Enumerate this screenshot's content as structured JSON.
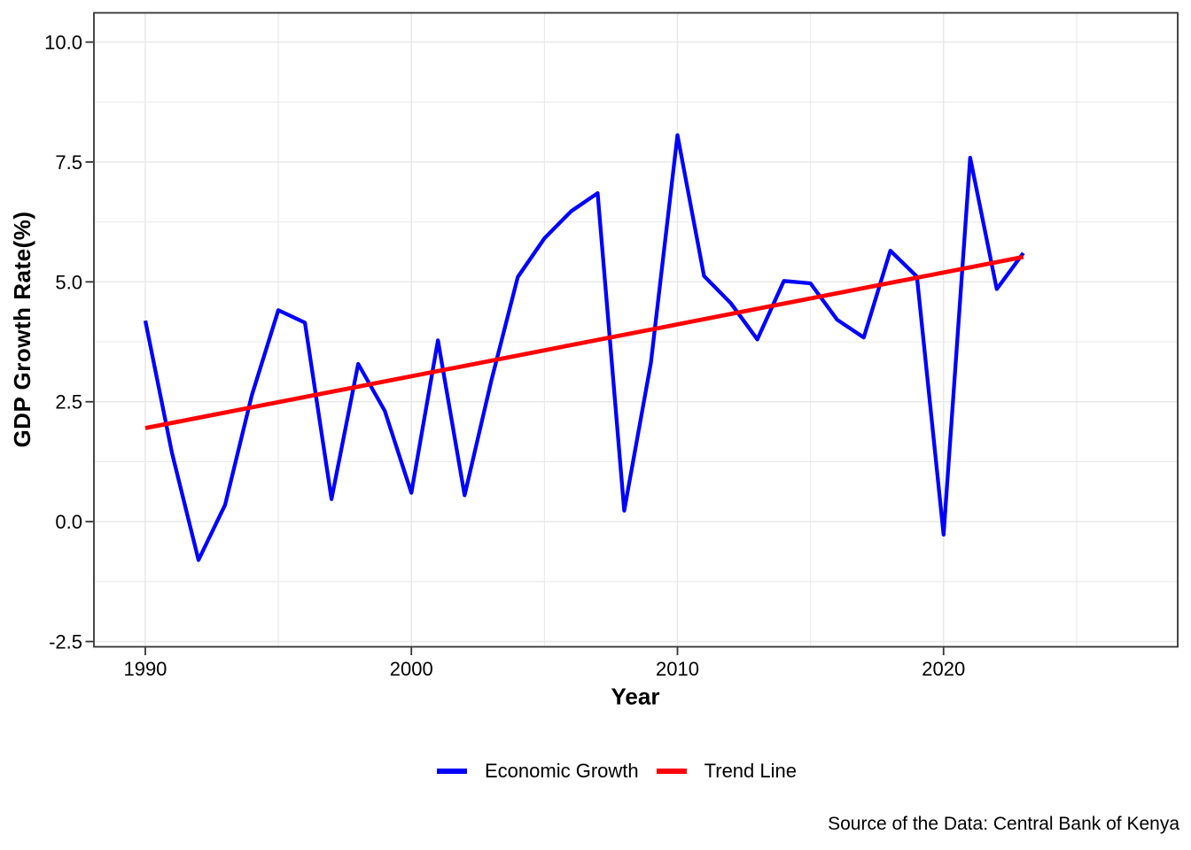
{
  "chart_data": {
    "type": "line",
    "title": "",
    "xlabel": "Year",
    "ylabel": "GDP Growth Rate(%)",
    "xlim": [
      1988.07,
      2028.8
    ],
    "ylim": [
      -2.61,
      10.61
    ],
    "x_major_ticks": [
      1990,
      2000,
      2010,
      2020
    ],
    "x_tick_labels": [
      "1990",
      "2000",
      "2010",
      "2020"
    ],
    "x_minor_gridlines": [
      1995,
      2005,
      2015,
      2025
    ],
    "y_major_ticks": [
      -2.5,
      0.0,
      2.5,
      5.0,
      7.5,
      10.0
    ],
    "y_tick_labels": [
      "-2.5",
      "0.0",
      "2.5",
      "5.0",
      "7.5",
      "10.0"
    ],
    "y_minor_gridlines": [
      -1.25,
      1.25,
      3.75,
      6.25,
      8.75
    ],
    "grid": true,
    "grid_color": "#E8E8E8",
    "panel_border_color": "#333333",
    "tick_color": "#333333",
    "legend_position": "bottom",
    "series": [
      {
        "name": "Economic Growth",
        "color": "#0000FF",
        "width": 4.3,
        "x": [
          1990,
          1991,
          1992,
          1993,
          1994,
          1995,
          1996,
          1997,
          1998,
          1999,
          2000,
          2001,
          2002,
          2003,
          2004,
          2005,
          2006,
          2007,
          2008,
          2009,
          2010,
          2011,
          2012,
          2013,
          2014,
          2015,
          2016,
          2017,
          2018,
          2019,
          2020,
          2021,
          2022,
          2023
        ],
        "values": [
          4.19,
          1.44,
          -0.8,
          0.35,
          2.63,
          4.41,
          4.15,
          0.47,
          3.29,
          2.31,
          0.6,
          3.78,
          0.55,
          2.93,
          5.1,
          5.91,
          6.47,
          6.85,
          0.23,
          3.31,
          8.06,
          5.12,
          4.56,
          3.8,
          5.02,
          4.97,
          4.21,
          3.84,
          5.65,
          5.11,
          -0.27,
          7.59,
          4.85,
          5.6
        ]
      },
      {
        "name": "Trend Line",
        "color": "#FF0000",
        "width": 4.8,
        "x": [
          1990,
          2023
        ],
        "values": [
          1.95,
          5.52
        ]
      }
    ]
  },
  "axes": {
    "x_title": "Year",
    "y_title": "GDP Growth Rate(%)"
  },
  "legend": {
    "items": [
      {
        "label": "Economic Growth",
        "color": "#0000FF"
      },
      {
        "label": "Trend Line",
        "color": "#FF0000"
      }
    ]
  },
  "source_note": "Source of the Data: Central Bank of Kenya"
}
